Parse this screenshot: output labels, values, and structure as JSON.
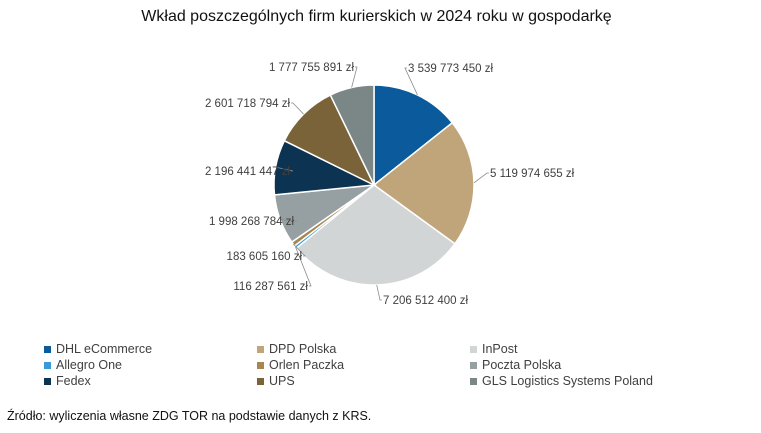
{
  "title": "Wkład poszczególnych firm kurierskich w 2024 roku w gospodarkę",
  "source": "Źródło: wyliczenia własne ZDG TOR na podstawie danych z KRS.",
  "chart_data": {
    "type": "pie",
    "title": "Wkład poszczególnych firm kurierskich w 2024 roku w gospodarkę",
    "unit": "zł",
    "legend_position": "bottom",
    "categories": [
      "DHL eCommerce",
      "DPD Polska",
      "InPost",
      "Allegro One",
      "Orlen Paczka",
      "Poczta Polska",
      "Fedex",
      "UPS",
      "GLS Logistics Systems Poland"
    ],
    "values": [
      3539773450,
      5119974655,
      7206512400,
      116287561,
      183605160,
      1998268784,
      2196441447,
      2601718794,
      1777755891
    ],
    "labels": [
      "3 539 773 450 zł",
      "5 119 974 655 zł",
      "7 206 512 400 zł",
      "116 287 561 zł",
      "183 605 160 zł",
      "1 998 268 784 zł",
      "2 196 441 447 zł",
      "2 601 718 794 zł",
      "1 777 755 891 zł"
    ],
    "colors": [
      "#0a5a9c",
      "#c0a57a",
      "#d2d5d6",
      "#3a9ad9",
      "#a7864f",
      "#969fa1",
      "#0d3353",
      "#7a6338",
      "#7b8686"
    ]
  },
  "legend": {
    "rows": [
      [
        {
          "label": "DHL eCommerce",
          "color": "#0a5a9c"
        },
        {
          "label": "DPD Polska",
          "color": "#c0a57a"
        },
        {
          "label": "InPost",
          "color": "#d2d5d6"
        }
      ],
      [
        {
          "label": "Allegro One",
          "color": "#3a9ad9"
        },
        {
          "label": "Orlen Paczka",
          "color": "#a7864f"
        },
        {
          "label": "Poczta Polska",
          "color": "#969fa1"
        }
      ],
      [
        {
          "label": "Fedex",
          "color": "#0d3353"
        },
        {
          "label": "UPS",
          "color": "#7a6338"
        },
        {
          "label": "GLS Logistics Systems Poland",
          "color": "#7b8686"
        }
      ]
    ]
  }
}
